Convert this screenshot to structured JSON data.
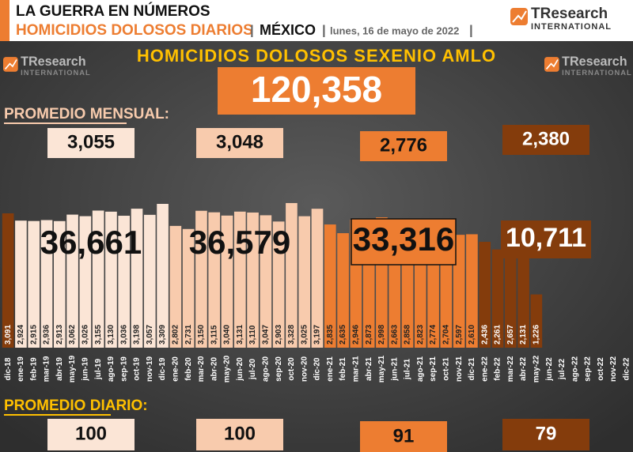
{
  "chart_data": {
    "type": "bar",
    "title": "LA GUERRA EN NÚMEROS",
    "subtitle": "HOMICIDIOS DOLOSOS DIARIOS",
    "country": "MÉXICO",
    "date": "lunes, 16 de mayo de 2022",
    "logo": {
      "name": "TResearch",
      "tagline": "INTERNATIONAL"
    },
    "total_title": "HOMICIDIOS DOLOSOS SEXENIO AMLO",
    "total": {
      "value": 120358,
      "label": "120,358"
    },
    "monthly_avg_title": "PROMEDIO MENSUAL:",
    "monthly_avg": [
      {
        "value": 3055,
        "label": "3,055"
      },
      {
        "value": 3048,
        "label": "3,048"
      },
      {
        "value": 2776,
        "label": "2,776"
      },
      {
        "value": 2380,
        "label": "2,380"
      }
    ],
    "year_totals": [
      {
        "value": 36661,
        "label": "36,661"
      },
      {
        "value": 36579,
        "label": "36,579"
      },
      {
        "value": 33316,
        "label": "33,316"
      },
      {
        "value": 10711,
        "label": "10,711"
      }
    ],
    "daily_avg_title": "PROMEDIO DIARIO:",
    "daily_avg": [
      100,
      100,
      91,
      79
    ],
    "group_colors": [
      "#fbe5d6",
      "#f8cbad",
      "#ed7d31",
      "#843c0c"
    ],
    "categories": [
      "dic-18",
      "ene-19",
      "feb-19",
      "mar-19",
      "abr-19",
      "may-19",
      "jun-19",
      "jul-19",
      "ago-19",
      "sep-19",
      "oct-19",
      "nov-19",
      "dic-19",
      "ene-20",
      "feb-20",
      "mar-20",
      "abr-20",
      "may-20",
      "jun-20",
      "jul-20",
      "ago-20",
      "sep-20",
      "oct-20",
      "nov-20",
      "dic-20",
      "ene-21",
      "feb-21",
      "mar-21",
      "abr-21",
      "may-21",
      "jun-21",
      "jul-21",
      "ago-21",
      "sep-21",
      "oct-21",
      "nov-21",
      "dic-21",
      "ene-22",
      "feb-22",
      "mar-22",
      "abr-22",
      "may-22",
      "jun-22",
      "jul-22",
      "ago-22",
      "sep-22",
      "oct-22",
      "nov-22",
      "dic-22"
    ],
    "values": [
      3091,
      2924,
      2915,
      2936,
      2913,
      3062,
      3026,
      3155,
      3130,
      3036,
      3198,
      3057,
      3309,
      2802,
      2731,
      3150,
      3115,
      3040,
      3131,
      3110,
      3047,
      2903,
      3328,
      3025,
      3197,
      2835,
      2635,
      2946,
      2873,
      2998,
      2663,
      2858,
      2823,
      2774,
      2704,
      2597,
      2610,
      2436,
      2261,
      2657,
      2131,
      1226,
      null,
      null,
      null,
      null,
      null,
      null,
      null
    ],
    "value_labels": [
      "3,091",
      "2,924",
      "2,915",
      "2,936",
      "2,913",
      "3,062",
      "3,026",
      "3,155",
      "3,130",
      "3,036",
      "3,198",
      "3,057",
      "3,309",
      "2,802",
      "2,731",
      "3,150",
      "3,115",
      "3,040",
      "3,131",
      "3,110",
      "3,047",
      "2,903",
      "3,328",
      "3,025",
      "3,197",
      "2,835",
      "2,635",
      "2,946",
      "2,873",
      "2,998",
      "2,663",
      "2,858",
      "2,823",
      "2,774",
      "2,704",
      "2,597",
      "2,610",
      "2,436",
      "2,261",
      "2,657",
      "2,131",
      "1,226",
      null,
      null,
      null,
      null,
      null,
      null,
      null
    ],
    "colors": [
      "#843c0c",
      "#fbe5d6",
      "#fbe5d6",
      "#fbe5d6",
      "#fbe5d6",
      "#fbe5d6",
      "#fbe5d6",
      "#fbe5d6",
      "#fbe5d6",
      "#fbe5d6",
      "#fbe5d6",
      "#fbe5d6",
      "#fbe5d6",
      "#f8cbad",
      "#f8cbad",
      "#f8cbad",
      "#f8cbad",
      "#f8cbad",
      "#f8cbad",
      "#f8cbad",
      "#f8cbad",
      "#f8cbad",
      "#f8cbad",
      "#f8cbad",
      "#f8cbad",
      "#ed7d31",
      "#ed7d31",
      "#ed7d31",
      "#ed7d31",
      "#ed7d31",
      "#ed7d31",
      "#ed7d31",
      "#ed7d31",
      "#ed7d31",
      "#ed7d31",
      "#ed7d31",
      "#ed7d31",
      "#843c0c",
      "#843c0c",
      "#843c0c",
      "#843c0c",
      "#843c0c",
      null,
      null,
      null,
      null,
      null,
      null,
      null
    ]
  }
}
